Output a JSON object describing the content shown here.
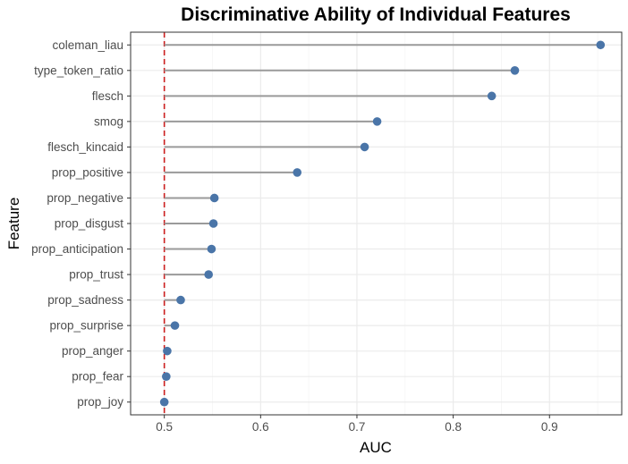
{
  "chart_data": {
    "type": "lollipop",
    "orientation": "horizontal",
    "title": "Discriminative Ability of Individual Features",
    "xlabel": "AUC",
    "ylabel": "Feature",
    "xlim": [
      0.465,
      0.975
    ],
    "xticks": [
      0.5,
      0.6,
      0.7,
      0.8,
      0.9
    ],
    "xtick_labels": [
      "0.5",
      "0.6",
      "0.7",
      "0.8",
      "0.9"
    ],
    "baseline": 0.5,
    "reference_line": {
      "x": 0.5,
      "style": "dashed",
      "color": "#cc1f1f"
    },
    "grid": true,
    "legend": "none",
    "colors": {
      "point": "#4a75a8",
      "segment": "#9a9a9a",
      "reference": "#cc1f1f",
      "grid_major": "#ebebeb",
      "grid_minor": "#f5f5f5",
      "panel_border": "#333333"
    },
    "categories": [
      "coleman_liau",
      "type_token_ratio",
      "flesch",
      "smog",
      "flesch_kincaid",
      "prop_positive",
      "prop_negative",
      "prop_disgust",
      "prop_anticipation",
      "prop_trust",
      "prop_sadness",
      "prop_surprise",
      "prop_anger",
      "prop_fear",
      "prop_joy"
    ],
    "values": [
      0.953,
      0.864,
      0.84,
      0.721,
      0.708,
      0.638,
      0.552,
      0.551,
      0.549,
      0.546,
      0.517,
      0.511,
      0.503,
      0.502,
      0.5
    ]
  }
}
